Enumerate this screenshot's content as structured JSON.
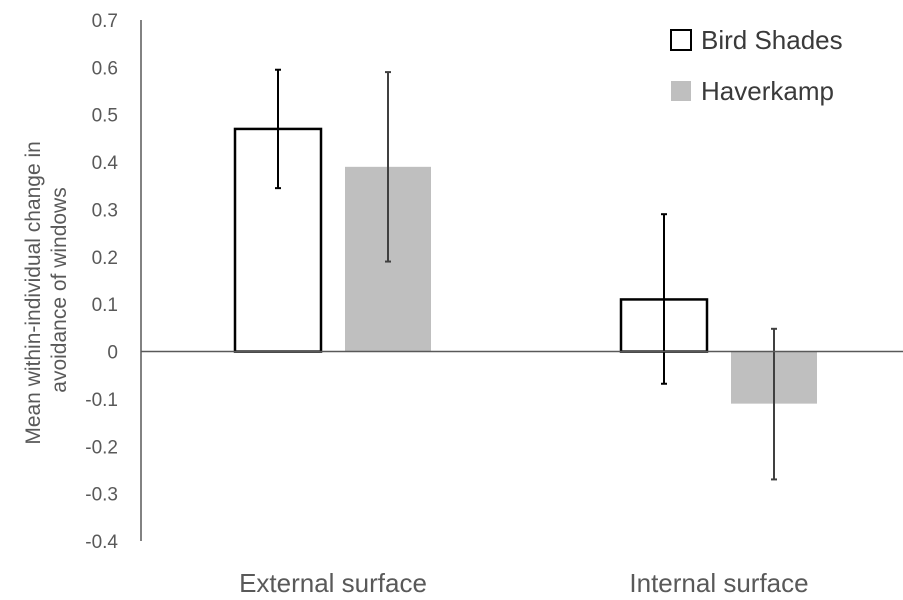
{
  "chart_data": {
    "type": "bar",
    "ylabel_lines": [
      "Mean within-individual change in",
      "avoidance of windows"
    ],
    "categories": [
      "External surface",
      "Internal surface"
    ],
    "ylim": [
      -0.4,
      0.7
    ],
    "y_ticks": [
      0.7,
      0.6,
      0.5,
      0.4,
      0.3,
      0.2,
      0.1,
      0,
      -0.1,
      -0.2,
      -0.3,
      -0.4
    ],
    "y_tick_labels": [
      "0.7",
      "0.6",
      "0.5",
      "0.4",
      "0.3",
      "0.2",
      "0.1",
      "0",
      "-0.1",
      "-0.2",
      "-0.3",
      "-0.4"
    ],
    "grid": false,
    "legend_position": "top-right",
    "series": [
      {
        "name": "Bird Shades",
        "fill": "#ffffff",
        "stroke": "#000000",
        "values": [
          0.47,
          0.11
        ],
        "err_low": [
          0.345,
          -0.068
        ],
        "err_high": [
          0.595,
          0.29
        ]
      },
      {
        "name": "Haverkamp",
        "fill": "#bfbfbf",
        "stroke": "none",
        "values": [
          0.39,
          -0.11
        ],
        "err_low": [
          0.19,
          -0.27
        ],
        "err_high": [
          0.59,
          0.048
        ]
      }
    ]
  }
}
